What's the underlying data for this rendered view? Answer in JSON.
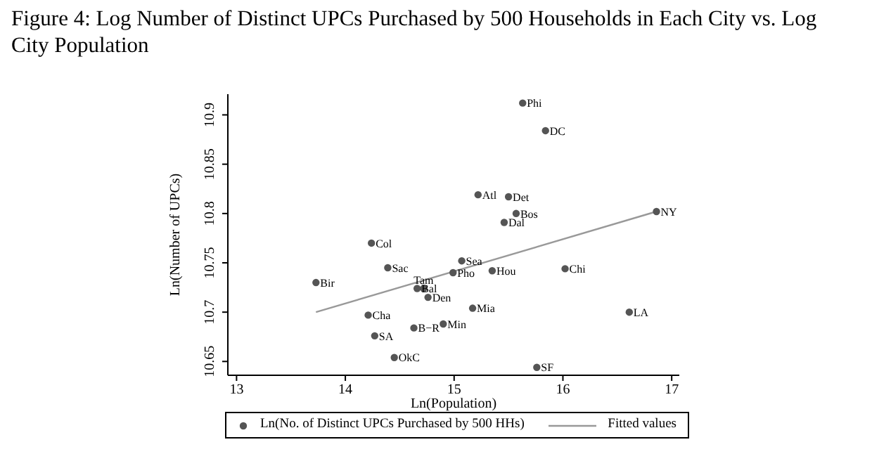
{
  "chart_data": {
    "type": "scatter",
    "title": "Figure 4: Log Number of Distinct UPCs Purchased by 500 Households in Each City vs. Log City Population",
    "xlabel": "Ln(Population)",
    "ylabel": "Ln(Number of UPCs)",
    "xlim": [
      12.92,
      17.07
    ],
    "xticks": [
      13,
      14,
      15,
      16,
      17
    ],
    "ylim": [
      10.636,
      10.921
    ],
    "yticks": [
      10.65,
      10.7,
      10.75,
      10.8,
      10.85,
      10.9
    ],
    "legend": "bottom",
    "marker": "circle",
    "series": [
      {
        "name": "Ln(No. of Distinct UPCs Purchased by 500 HHs)",
        "color": "#555555",
        "x": [
          14.24,
          14.39,
          13.73,
          14.66,
          14.72,
          14.76,
          14.21,
          14.27,
          14.63,
          14.45,
          15.63,
          15.84,
          15.22,
          15.5,
          15.57,
          15.46,
          16.86,
          15.07,
          14.99,
          15.35,
          16.02,
          15.17,
          14.9,
          16.61,
          15.76
        ],
        "values": [
          10.77,
          10.745,
          10.73,
          10.724,
          10.724,
          10.715,
          10.697,
          10.676,
          10.684,
          10.654,
          10.912,
          10.884,
          10.819,
          10.817,
          10.8,
          10.791,
          10.802,
          10.752,
          10.74,
          10.742,
          10.744,
          10.704,
          10.688,
          10.7,
          10.644
        ]
      },
      {
        "name": "Fitted values",
        "type": "line",
        "color": "#999999",
        "marker": "none",
        "x": [
          13.73,
          16.86
        ],
        "values": [
          10.7,
          10.802
        ]
      }
    ],
    "annotations": [
      {
        "text": "Col",
        "x": 14.24,
        "y": 10.77
      },
      {
        "text": "Sac",
        "x": 14.39,
        "y": 10.745
      },
      {
        "text": "Bir",
        "x": 13.73,
        "y": 10.73
      },
      {
        "text": "Bal",
        "x": 14.66,
        "y": 10.724
      },
      {
        "text": "Tam",
        "x": 14.72,
        "y": 10.724
      },
      {
        "text": "Den",
        "x": 14.76,
        "y": 10.715
      },
      {
        "text": "Cha",
        "x": 14.21,
        "y": 10.697
      },
      {
        "text": "SA",
        "x": 14.27,
        "y": 10.676
      },
      {
        "text": "B−R",
        "x": 14.63,
        "y": 10.684
      },
      {
        "text": "OkC",
        "x": 14.45,
        "y": 10.654
      },
      {
        "text": "Phi",
        "x": 15.63,
        "y": 10.912
      },
      {
        "text": "DC",
        "x": 15.84,
        "y": 10.884
      },
      {
        "text": "Atl",
        "x": 15.22,
        "y": 10.819
      },
      {
        "text": "Det",
        "x": 15.5,
        "y": 10.817
      },
      {
        "text": "Bos",
        "x": 15.57,
        "y": 10.8
      },
      {
        "text": "Dal",
        "x": 15.46,
        "y": 10.791
      },
      {
        "text": "NY",
        "x": 16.86,
        "y": 10.802
      },
      {
        "text": "Sea",
        "x": 15.07,
        "y": 10.752
      },
      {
        "text": "Pho",
        "x": 14.99,
        "y": 10.74
      },
      {
        "text": "Hou",
        "x": 15.35,
        "y": 10.742
      },
      {
        "text": "Chi",
        "x": 16.02,
        "y": 10.744
      },
      {
        "text": "Mia",
        "x": 15.17,
        "y": 10.704
      },
      {
        "text": "Min",
        "x": 14.9,
        "y": 10.688
      },
      {
        "text": "LA",
        "x": 16.61,
        "y": 10.7
      },
      {
        "text": "SF",
        "x": 15.76,
        "y": 10.644
      }
    ]
  }
}
